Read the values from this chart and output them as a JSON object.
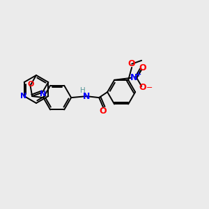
{
  "background_color": "#ebebeb",
  "bond_color": "#000000",
  "atom_colors": {
    "N": "#0000ff",
    "O": "#ff0000",
    "H": "#5a9a9a",
    "C": "#000000"
  },
  "title": "",
  "figsize": [
    3.0,
    3.0
  ],
  "dpi": 100
}
